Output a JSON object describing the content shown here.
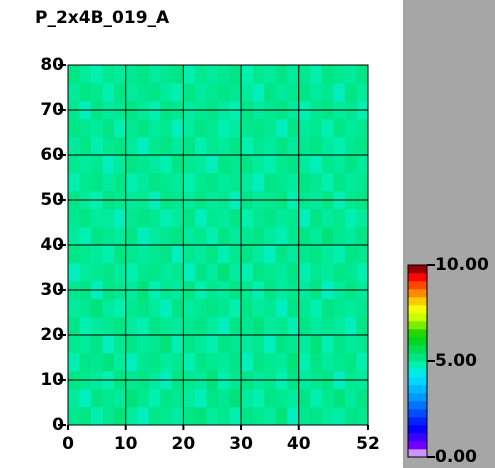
{
  "chart_data": {
    "type": "heatmap",
    "title": "P_2x4B_019_A",
    "xlim": [
      0,
      52
    ],
    "ylim": [
      0,
      80
    ],
    "xticks": [
      0,
      10,
      20,
      30,
      40,
      52
    ],
    "yticks": [
      0,
      10,
      20,
      30,
      40,
      50,
      60,
      70,
      80
    ],
    "grid": true,
    "colorscale": [
      [
        0,
        "#ffffff"
      ],
      [
        0.5,
        "#8000ff"
      ],
      [
        1.5,
        "#0000ff"
      ],
      [
        3,
        "#0090ff"
      ],
      [
        4.2,
        "#00e8ff"
      ],
      [
        4.8,
        "#00f0b0"
      ],
      [
        5.4,
        "#00e070"
      ],
      [
        6.3,
        "#00d000"
      ],
      [
        7.2,
        "#c0ff00"
      ],
      [
        7.8,
        "#ffff00"
      ],
      [
        8.6,
        "#ff8000"
      ],
      [
        9.4,
        "#ff0000"
      ],
      [
        10,
        "#600000"
      ]
    ],
    "colorbar_ticks": [
      {
        "value": 0,
        "label": "0.00"
      },
      {
        "value": 5,
        "label": "5.00"
      },
      {
        "value": 10,
        "label": "10.00"
      }
    ],
    "z": [
      [
        5.1,
        5.2,
        4.8,
        5.1,
        5.3,
        5.0,
        4.7,
        5.2,
        5.1,
        4.9,
        5.2,
        5.3,
        5.0,
        5.1,
        4.8,
        5.2,
        5.1,
        5.0,
        5.3,
        4.7,
        5.1,
        5.2,
        5.0,
        4.9,
        5.2,
        5.1
      ],
      [
        5.0,
        4.7,
        5.2,
        5.1,
        5.0,
        5.3,
        5.1,
        4.8,
        5.2,
        5.1,
        5.0,
        4.7,
        5.2,
        5.1,
        5.3,
        5.0,
        4.8,
        5.2,
        5.1,
        5.0,
        5.2,
        4.8,
        5.1,
        5.3,
        5.0,
        5.2
      ],
      [
        5.2,
        5.1,
        5.0,
        4.8,
        5.2,
        5.1,
        5.2,
        5.0,
        4.7,
        5.2,
        5.1,
        5.0,
        5.3,
        4.8,
        5.1,
        5.2,
        5.0,
        5.1,
        4.8,
        5.2,
        5.0,
        5.1,
        5.2,
        4.7,
        5.1,
        5.0
      ],
      [
        4.8,
        5.2,
        5.1,
        5.3,
        5.0,
        4.7,
        5.1,
        5.2,
        5.0,
        5.1,
        4.8,
        5.2,
        5.1,
        5.0,
        5.2,
        4.7,
        5.2,
        5.1,
        5.0,
        5.3,
        4.8,
        5.2,
        5.0,
        5.1,
        5.2,
        4.8
      ],
      [
        5.1,
        5.0,
        5.2,
        4.7,
        5.1,
        5.2,
        5.0,
        5.1,
        5.3,
        4.8,
        5.2,
        5.0,
        4.8,
        5.2,
        5.1,
        5.0,
        5.1,
        4.7,
        5.2,
        5.1,
        5.0,
        5.3,
        4.8,
        5.2,
        5.0,
        5.1
      ],
      [
        5.2,
        4.8,
        5.0,
        5.1,
        5.2,
        5.0,
        4.8,
        5.2,
        5.1,
        5.0,
        5.1,
        5.2,
        5.0,
        4.7,
        5.2,
        5.1,
        5.3,
        5.0,
        5.1,
        4.8,
        5.2,
        5.0,
        5.1,
        5.0,
        4.7,
        5.2
      ],
      [
        5.0,
        5.1,
        5.3,
        5.0,
        4.8,
        5.1,
        5.2,
        5.0,
        4.7,
        5.2,
        5.0,
        5.1,
        5.2,
        5.1,
        4.8,
        5.2,
        5.0,
        5.1,
        4.7,
        5.2,
        5.1,
        4.8,
        5.2,
        5.1,
        5.0,
        5.1
      ],
      [
        5.1,
        5.2,
        4.7,
        5.2,
        5.1,
        5.0,
        5.3,
        4.8,
        5.1,
        5.0,
        5.2,
        4.8,
        5.1,
        5.0,
        5.2,
        5.1,
        4.8,
        5.2,
        5.0,
        5.1,
        5.0,
        5.2,
        4.7,
        5.0,
        5.2,
        5.0
      ],
      [
        4.7,
        5.0,
        5.1,
        5.2,
        5.0,
        4.8,
        5.1,
        5.2,
        5.0,
        5.1,
        4.7,
        5.2,
        5.0,
        5.3,
        5.0,
        4.8,
        5.2,
        5.1,
        5.0,
        5.2,
        4.8,
        5.1,
        5.0,
        5.2,
        5.1,
        4.8
      ],
      [
        5.2,
        5.1,
        5.0,
        4.8,
        5.2,
        5.1,
        5.0,
        5.1,
        5.2,
        4.7,
        5.1,
        5.0,
        5.2,
        4.8,
        5.1,
        5.2,
        5.0,
        4.7,
        5.2,
        5.0,
        5.1,
        5.2,
        5.0,
        4.8,
        5.2,
        5.1
      ],
      [
        5.0,
        4.8,
        5.2,
        5.1,
        5.0,
        5.2,
        4.7,
        5.0,
        5.1,
        5.2,
        5.0,
        5.1,
        4.8,
        5.2,
        5.0,
        5.1,
        5.2,
        5.0,
        4.8,
        5.1,
        5.2,
        5.0,
        5.3,
        5.1,
        5.0,
        5.2
      ],
      [
        5.1,
        5.2,
        5.0,
        5.0,
        4.7,
        5.1,
        5.2,
        5.1,
        4.8,
        5.0,
        5.2,
        4.7,
        5.1,
        5.0,
        5.2,
        4.8,
        5.1,
        5.2,
        5.0,
        5.1,
        4.7,
        5.2,
        5.0,
        5.1,
        4.8,
        5.0
      ],
      [
        5.2,
        5.0,
        4.8,
        5.2,
        5.1,
        5.0,
        5.1,
        4.7,
        5.2,
        5.1,
        5.0,
        5.2,
        5.0,
        5.1,
        4.7,
        5.2,
        5.0,
        5.1,
        5.2,
        4.8,
        5.1,
        5.0,
        5.2,
        4.8,
        5.1,
        5.2
      ],
      [
        4.8,
        5.1,
        5.2,
        5.0,
        5.2,
        4.8,
        5.0,
        5.2,
        5.1,
        5.0,
        4.8,
        5.1,
        5.2,
        5.0,
        5.1,
        5.0,
        4.7,
        5.2,
        5.1,
        5.0,
        5.2,
        5.1,
        4.8,
        5.2,
        5.0,
        5.1
      ],
      [
        5.1,
        5.0,
        5.1,
        4.7,
        5.0,
        5.2,
        5.1,
        5.0,
        4.8,
        5.2,
        5.1,
        5.0,
        4.7,
        5.2,
        5.1,
        5.2,
        5.0,
        4.8,
        5.1,
        5.2,
        5.0,
        4.7,
        5.1,
        5.0,
        5.2,
        5.0
      ],
      [
        5.0,
        5.2,
        4.8,
        5.1,
        5.2,
        5.0,
        4.7,
        5.1,
        5.2,
        5.0,
        5.2,
        4.8,
        5.1,
        5.0,
        5.2,
        4.8,
        5.1,
        5.0,
        5.2,
        5.0,
        5.1,
        5.2,
        5.0,
        4.8,
        5.1,
        5.2
      ],
      [
        5.2,
        5.1,
        5.0,
        5.2,
        4.8,
        5.1,
        5.2,
        5.0,
        5.1,
        4.7,
        5.0,
        5.2,
        5.1,
        4.8,
        5.0,
        5.1,
        5.2,
        5.1,
        4.7,
        5.2,
        5.0,
        5.1,
        4.8,
        5.2,
        5.0,
        5.1
      ],
      [
        5.1,
        4.7,
        5.2,
        5.0,
        5.1,
        5.2,
        5.0,
        4.8,
        5.2,
        5.1,
        5.0,
        5.1,
        5.2,
        5.0,
        4.8,
        5.2,
        5.0,
        5.1,
        5.2,
        5.0,
        4.8,
        5.1,
        5.2,
        5.0,
        5.1,
        4.8
      ],
      [
        5.0,
        5.2,
        5.1,
        4.8,
        5.2,
        5.0,
        5.1,
        5.2,
        5.0,
        4.8,
        5.2,
        5.0,
        5.1,
        5.2,
        5.1,
        5.0,
        4.7,
        5.2,
        5.0,
        5.1,
        5.2,
        5.0,
        5.1,
        4.7,
        5.2,
        5.0
      ],
      [
        5.2,
        5.0,
        4.8,
        5.1,
        5.0,
        5.1,
        5.2,
        5.0,
        5.1,
        5.2,
        4.8,
        5.1,
        5.0,
        5.1,
        5.2,
        4.8,
        5.1,
        5.0,
        5.2,
        5.0,
        5.1,
        4.8,
        5.2,
        5.1,
        5.0,
        5.2
      ]
    ]
  }
}
